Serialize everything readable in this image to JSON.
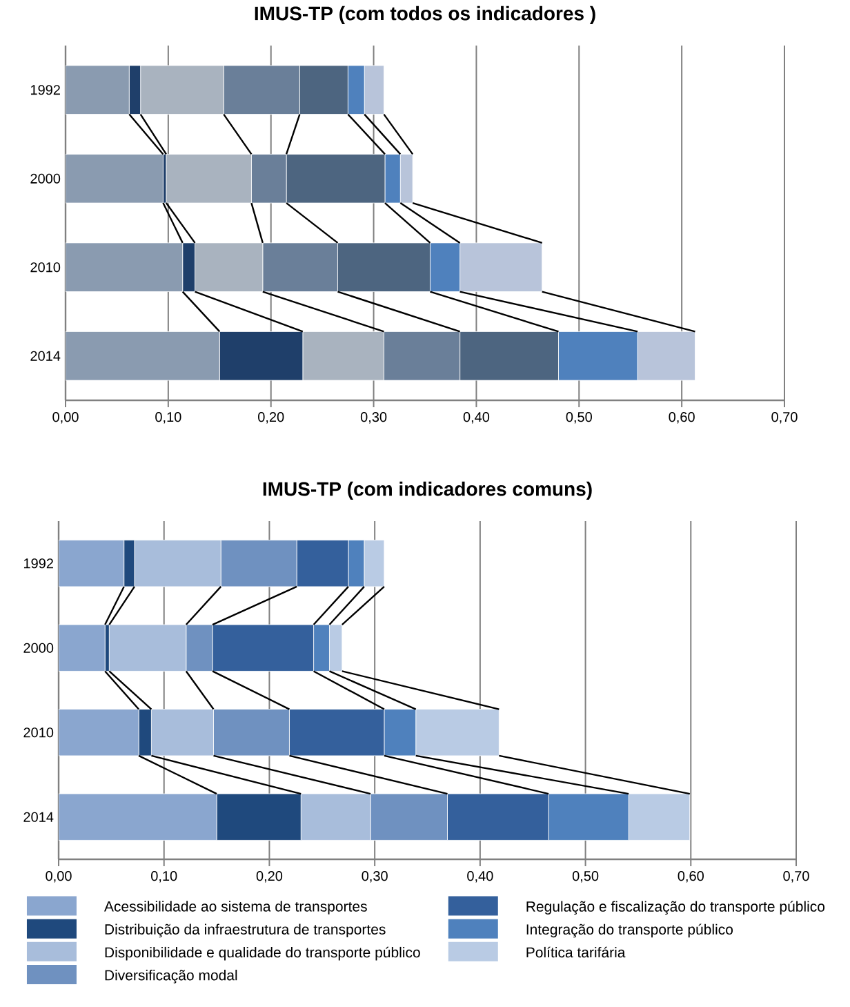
{
  "chart_data": [
    {
      "type": "bar",
      "title": "IMUS-TP (com todos os indicadores )",
      "orientation": "horizontal",
      "stacked": true,
      "grid": "x",
      "categories": [
        "1992",
        "2000",
        "2010",
        "2014"
      ],
      "xlim": [
        0,
        0.7
      ],
      "xticks": [
        {
          "value": 0,
          "label": "0,00"
        },
        {
          "value": 0.1,
          "label": "0,10"
        },
        {
          "value": 0.2,
          "label": "0,20"
        },
        {
          "value": 0.3,
          "label": "0,30"
        },
        {
          "value": 0.4,
          "label": "0,40"
        },
        {
          "value": 0.5,
          "label": "0,50"
        },
        {
          "value": 0.6,
          "label": "0,60"
        },
        {
          "value": 0.7,
          "label": "0,70"
        }
      ],
      "series": [
        {
          "color": "#8a9bb0",
          "values": [
            0.062,
            0.095,
            0.114,
            0.15
          ]
        },
        {
          "color": "#1f3f6a",
          "values": [
            0.011,
            0.003,
            0.012,
            0.081
          ]
        },
        {
          "color": "#a9b3bf",
          "values": [
            0.081,
            0.083,
            0.066,
            0.079
          ]
        },
        {
          "color": "#6a7f99",
          "values": [
            0.074,
            0.034,
            0.073,
            0.074
          ]
        },
        {
          "color": "#4d6580",
          "values": [
            0.047,
            0.096,
            0.09,
            0.096
          ]
        },
        {
          "color": "#4f81bd",
          "values": [
            0.016,
            0.015,
            0.029,
            0.077
          ]
        },
        {
          "color": "#b8c4da",
          "values": [
            0.019,
            0.012,
            0.08,
            0.056
          ]
        }
      ]
    },
    {
      "type": "bar",
      "title": "IMUS-TP (com indicadores comuns)",
      "orientation": "horizontal",
      "stacked": true,
      "grid": "x",
      "legend": "bottom",
      "categories": [
        "1992",
        "2000",
        "2010",
        "2014"
      ],
      "xlim": [
        0,
        0.7
      ],
      "xticks": [
        {
          "value": 0,
          "label": "0,00"
        },
        {
          "value": 0.1,
          "label": "0,10"
        },
        {
          "value": 0.2,
          "label": "0,20"
        },
        {
          "value": 0.3,
          "label": "0,30"
        },
        {
          "value": 0.4,
          "label": "0,40"
        },
        {
          "value": 0.5,
          "label": "0,50"
        },
        {
          "value": 0.6,
          "label": "0,60"
        },
        {
          "value": 0.7,
          "label": "0,70"
        }
      ],
      "series": [
        {
          "name": "Acessibilidade ao sistema de transportes",
          "color": "#8aa6cf",
          "values": [
            0.062,
            0.044,
            0.076,
            0.15
          ]
        },
        {
          "name": "Distribuição da infraestrutura de transportes",
          "color": "#1f497d",
          "values": [
            0.01,
            0.004,
            0.012,
            0.08
          ]
        },
        {
          "name": "Disponibilidade e qualidade do transporte público",
          "color": "#a8bddb",
          "values": [
            0.082,
            0.073,
            0.059,
            0.066
          ]
        },
        {
          "name": "Diversificação modal",
          "color": "#6f91c0",
          "values": [
            0.072,
            0.025,
            0.072,
            0.073
          ]
        },
        {
          "name": "Regulação e fiscalização do transporte público",
          "color": "#34609c",
          "values": [
            0.049,
            0.096,
            0.09,
            0.096
          ]
        },
        {
          "name": "Integração do transporte público",
          "color": "#4f81bd",
          "values": [
            0.015,
            0.015,
            0.03,
            0.076
          ]
        },
        {
          "name": "Política tarifária",
          "color": "#b9cbe4",
          "values": [
            0.019,
            0.012,
            0.079,
            0.058
          ]
        }
      ]
    }
  ]
}
